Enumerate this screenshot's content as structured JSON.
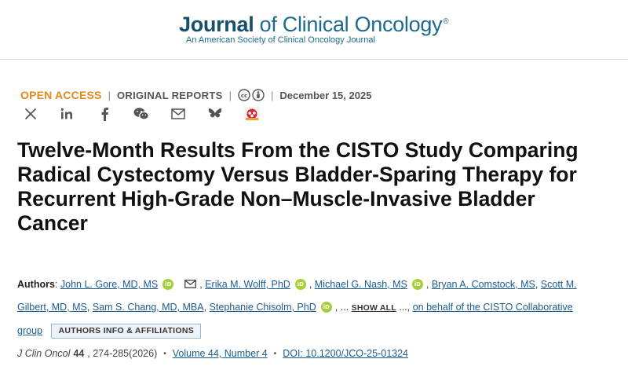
{
  "masthead": {
    "journal_word": "Journal",
    "journal_rest": " of Clinical Oncology",
    "registered_mark": "®",
    "subtitle": "An American Society of Clinical Oncology Journal"
  },
  "meta": {
    "open_access": "OPEN ACCESS",
    "separator": "|",
    "report_type": "ORIGINAL REPORTS",
    "date": "December 15, 2025",
    "license_icons": [
      "cc-icon",
      "by-attribution-icon"
    ]
  },
  "share": {
    "icons": [
      "x-icon",
      "linkedin-icon",
      "facebook-icon",
      "wechat-icon",
      "email-icon",
      "bluesky-icon",
      "mendeley-icon"
    ]
  },
  "article": {
    "title": "Twelve-Month Results From the CISTO Study Comparing Radical Cystectomy Versus Bladder-Sparing Therapy for Recurrent High-Grade Non–Muscle-Invasive Bladder Cancer"
  },
  "authors": {
    "label": "Authors",
    "colon": ":",
    "list": [
      "John L. Gore, MD, MS",
      "Erika M. Wolff, PhD",
      "Michael G. Nash, MS",
      "Bryan A. Comstock, MS",
      "Scott M. Gilbert, MD, MS",
      "Sam S. Chang, MD, MBA",
      "Stephanie Chisolm, PhD"
    ],
    "comma": ",",
    "ellipsis": "...",
    "show_all": "SHOW ALL",
    "on_behalf": "on behalf of the CISTO Collaborative group",
    "affiliations_button": "AUTHORS INFO & AFFILIATIONS",
    "orcid_text": "iD"
  },
  "citation": {
    "journal_abbrev": "J Clin Oncol",
    "volume_bold": "44",
    "pages": ", 274-285(2026)",
    "bullet": "•",
    "volume_issue": "Volume 44, Number 4",
    "doi": "DOI: 10.1200/JCO-25-01324"
  },
  "colors": {
    "open_access": "#e08a1e",
    "link": "#1a5c92",
    "brand": "#1c6b8c",
    "orcid": "#a6ce39"
  }
}
